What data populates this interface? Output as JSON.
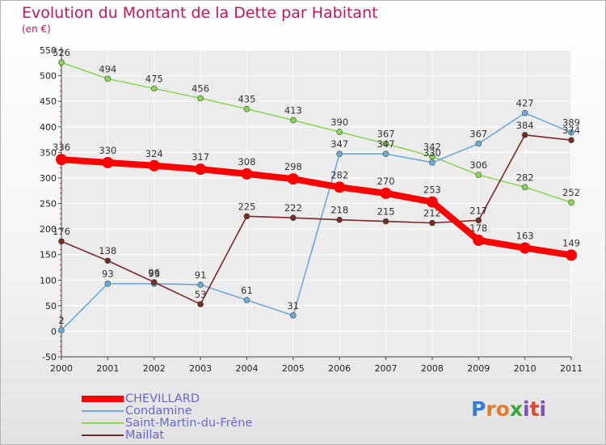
{
  "title": "Evolution du Montant de la Dette par Habitant",
  "subtitle": "(en €)",
  "logo": {
    "letters": [
      "P",
      "r",
      "o",
      "x",
      "i",
      "t",
      "i"
    ],
    "colors": [
      "#2f7fd6",
      "#e8792b",
      "#e8792b",
      "#3aa83a",
      "#7d4fc2",
      "#d84a2e",
      "#7d4fc2"
    ]
  },
  "chart_data": {
    "type": "line",
    "x": [
      "2000",
      "2001",
      "2002",
      "2003",
      "2004",
      "2005",
      "2006",
      "2007",
      "2008",
      "2009",
      "2010",
      "2011"
    ],
    "ylim": [
      -50,
      550
    ],
    "yticks": [
      -50,
      0,
      50,
      100,
      150,
      200,
      250,
      300,
      350,
      400,
      450,
      500,
      550
    ],
    "grid": "horizontal",
    "legend": "bottom-left",
    "series": [
      {
        "name": "CHEVILLARD",
        "color": "#ff0000",
        "values": [
          336,
          330,
          324,
          317,
          308,
          298,
          282,
          270,
          253,
          178,
          163,
          149
        ]
      },
      {
        "name": "Condamine",
        "color": "#6fa8dc",
        "values": [
          2,
          93,
          93,
          91,
          61,
          31,
          347,
          347,
          330,
          367,
          427,
          389
        ]
      },
      {
        "name": "Saint-Martin-du-Frêne",
        "color": "#8fd35a",
        "values": [
          526,
          494,
          475,
          456,
          435,
          413,
          390,
          367,
          342,
          306,
          282,
          252
        ]
      },
      {
        "name": "Maillat",
        "color": "#7a2a2a",
        "values": [
          176,
          138,
          96,
          53,
          225,
          222,
          218,
          215,
          212,
          217,
          384,
          374
        ]
      }
    ]
  }
}
